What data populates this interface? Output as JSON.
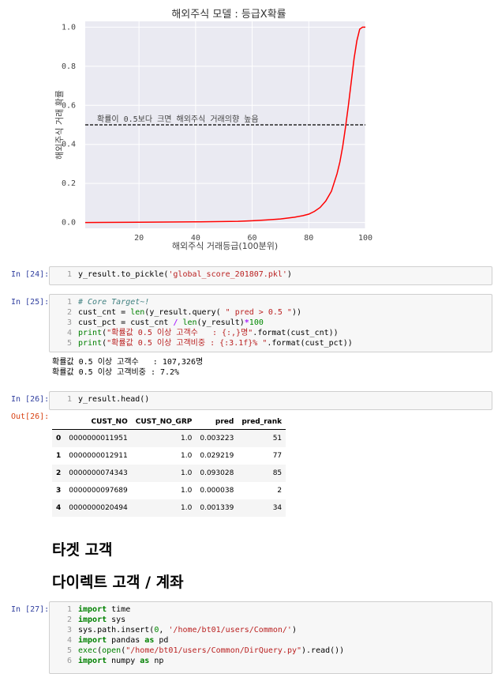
{
  "chart_data": {
    "type": "line",
    "title": "해외주식 모델 : 등급X확률",
    "xlabel": "해외주식 거래등급(100분위)",
    "ylabel": "해외주식 거래 확률",
    "xlim": [
      1,
      100
    ],
    "ylim": [
      -0.03,
      1.03
    ],
    "xticks": [
      20,
      40,
      60,
      80,
      100
    ],
    "yticks": [
      0.0,
      0.2,
      0.4,
      0.6,
      0.8,
      1.0
    ],
    "ytick_labels": [
      "0.0",
      "0.2",
      "0.4",
      "0.6",
      "0.8",
      "1.0"
    ],
    "grid": true,
    "series": [
      {
        "color": "#ff0000",
        "x": [
          1,
          20,
          40,
          55,
          60,
          65,
          70,
          75,
          78,
          80,
          82,
          84,
          86,
          88,
          90,
          91,
          92,
          93,
          94,
          95,
          96,
          97,
          98,
          99,
          100
        ],
        "y": [
          0.0,
          0.001,
          0.003,
          0.006,
          0.009,
          0.013,
          0.018,
          0.027,
          0.035,
          0.043,
          0.057,
          0.077,
          0.11,
          0.16,
          0.25,
          0.31,
          0.39,
          0.49,
          0.6,
          0.72,
          0.84,
          0.93,
          0.99,
          1.0,
          1.0
        ]
      }
    ],
    "hline": {
      "y": 0.5,
      "style": "dashed",
      "color": "#000000",
      "label": "확률이 0.5보다 크면 해외주식 거래의향 높음"
    }
  },
  "cells": [
    {
      "prompt": "In [24]:",
      "lines": [
        "y_result.to_pickle('global_score_201807.pkl')"
      ]
    },
    {
      "prompt": "In [25]:",
      "lines": [
        "# Core Target~!",
        "cust_cnt = len(y_result.query( \" pred > 0.5 \"))",
        "cust_pct = cust_cnt / len(y_result)*100",
        "print(\"확률값 0.5 이상 고객수   : {:,}명\".format(cust_cnt))",
        "print(\"확률값 0.5 이상 고객비중 : {:3.1f}% \".format(cust_pct))"
      ],
      "output": [
        "확률값 0.5 이상 고객수   : 107,326명",
        "확률값 0.5 이상 고객비중 : 7.2%"
      ]
    },
    {
      "prompt": "In [26]:",
      "lines": [
        "y_result.head()"
      ],
      "out_prompt": "Out[26]:"
    },
    {
      "prompt": "In [27]:",
      "lines": [
        "import time",
        "import sys",
        "sys.path.insert(0, '/home/bt01/users/Common/')",
        "import pandas as pd",
        "exec(open(\"/home/bt01/users/Common/DirQuery.py\").read())",
        "import numpy as np"
      ]
    }
  ],
  "dataframe": {
    "columns": [
      "CUST_NO",
      "CUST_NO_GRP",
      "pred",
      "pred_rank"
    ],
    "rows": [
      [
        "0",
        "0000000011951",
        "1.0",
        "0.003223",
        "51"
      ],
      [
        "1",
        "0000000012911",
        "1.0",
        "0.029219",
        "77"
      ],
      [
        "2",
        "0000000074343",
        "1.0",
        "0.093028",
        "85"
      ],
      [
        "3",
        "0000000097689",
        "1.0",
        "0.000038",
        "2"
      ],
      [
        "4",
        "0000000020494",
        "1.0",
        "0.001339",
        "34"
      ]
    ]
  },
  "markdown": {
    "h_target": "타겟 고객",
    "h_direct": "다이렉트 고객 / 계좌"
  }
}
